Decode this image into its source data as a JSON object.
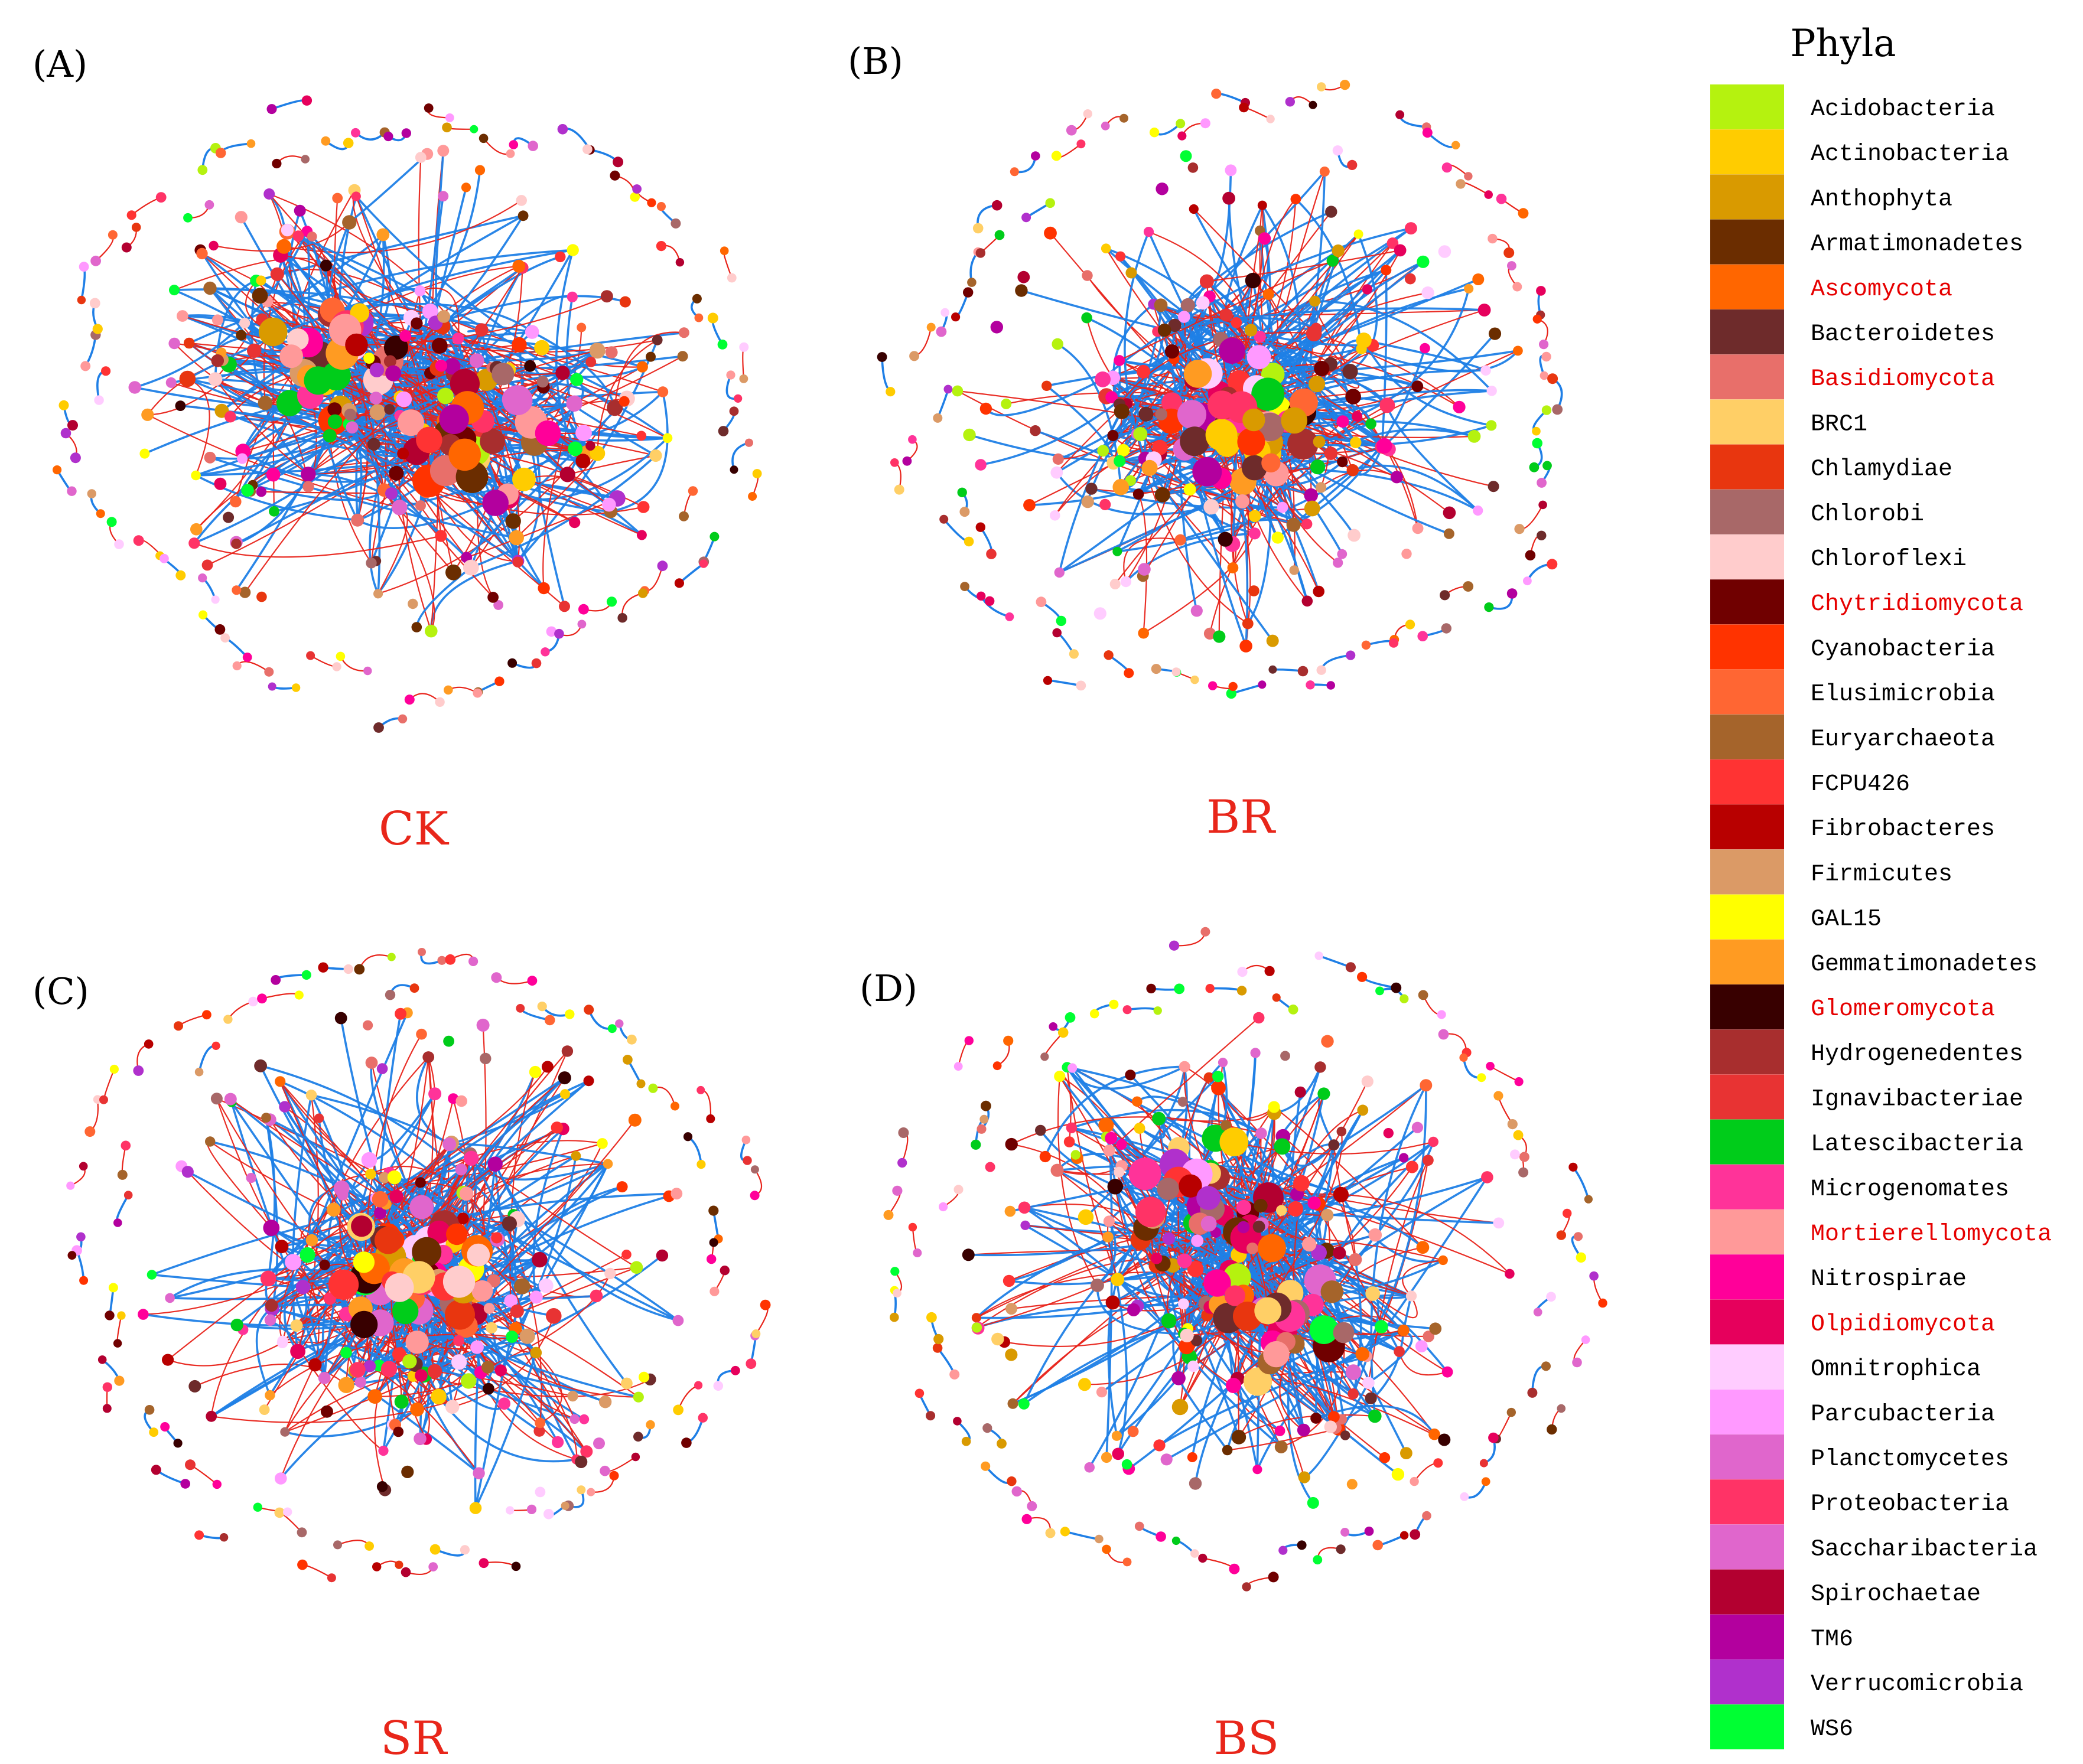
{
  "panels": [
    {
      "letter": "(A)",
      "name": "CK",
      "seed": 11,
      "hubs": [
        {
          "f": 0.25,
          "n": 70
        },
        {
          "f": 0.72,
          "n": 90
        }
      ]
    },
    {
      "letter": "(B)",
      "name": "BR",
      "seed": 23,
      "hubs": [
        {
          "f": 0.5,
          "n": 140
        }
      ]
    },
    {
      "letter": "(C)",
      "name": "SR",
      "seed": 37,
      "hubs": [
        {
          "f": 0.5,
          "n": 150
        }
      ]
    },
    {
      "letter": "(D)",
      "name": "BS",
      "seed": 53,
      "hubs": [
        {
          "f": 0.35,
          "n": 70
        },
        {
          "f": 0.62,
          "n": 80
        }
      ]
    }
  ],
  "edge_colors": {
    "positive": "#1f7fe6",
    "negative": "#e8231a"
  },
  "legend": {
    "title": "Phyla",
    "items": [
      {
        "label": "Acidobacteria",
        "color": "#b5f20f",
        "fungi": false
      },
      {
        "label": "Actinobacteria",
        "color": "#ffcc00",
        "fungi": false
      },
      {
        "label": "Anthophyta",
        "color": "#d99a00",
        "fungi": false
      },
      {
        "label": "Armatimonadetes",
        "color": "#6b2d00",
        "fungi": false
      },
      {
        "label": "Ascomycota",
        "color": "#ff6600",
        "fungi": true
      },
      {
        "label": "Bacteroidetes",
        "color": "#6e2b2b",
        "fungi": false
      },
      {
        "label": "Basidiomycota",
        "color": "#e86f6a",
        "fungi": true
      },
      {
        "label": "BRC1",
        "color": "#ffcf66",
        "fungi": false
      },
      {
        "label": "Chlamydiae",
        "color": "#e8360f",
        "fungi": false
      },
      {
        "label": "Chlorobi",
        "color": "#a86868",
        "fungi": false
      },
      {
        "label": "Chloroflexi",
        "color": "#ffcccc",
        "fungi": false
      },
      {
        "label": "Chytridiomycota",
        "color": "#700000",
        "fungi": true
      },
      {
        "label": "Cyanobacteria",
        "color": "#ff3300",
        "fungi": false
      },
      {
        "label": "Elusimicrobia",
        "color": "#ff6633",
        "fungi": false
      },
      {
        "label": "Euryarchaeota",
        "color": "#a5642b",
        "fungi": false
      },
      {
        "label": "FCPU426",
        "color": "#ff3333",
        "fungi": false
      },
      {
        "label": "Fibrobacteres",
        "color": "#b80000",
        "fungi": false
      },
      {
        "label": "Firmicutes",
        "color": "#db9a66",
        "fungi": false
      },
      {
        "label": "GAL15",
        "color": "#ffff00",
        "fungi": false
      },
      {
        "label": "Gemmatimonadetes",
        "color": "#ff9b22",
        "fungi": false
      },
      {
        "label": "Glomeromycota",
        "color": "#380000",
        "fungi": true
      },
      {
        "label": "Hydrogenedentes",
        "color": "#a82e2e",
        "fungi": false
      },
      {
        "label": "Ignavibacteriae",
        "color": "#e83333",
        "fungi": false
      },
      {
        "label": "Latescibacteria",
        "color": "#00cc1a",
        "fungi": false
      },
      {
        "label": "Microgenomates",
        "color": "#ff3399",
        "fungi": false
      },
      {
        "label": "Mortierellomycota",
        "color": "#ff9999",
        "fungi": true
      },
      {
        "label": "Nitrospirae",
        "color": "#ff0099",
        "fungi": false
      },
      {
        "label": "Olpidiomycota",
        "color": "#e6005c",
        "fungi": true
      },
      {
        "label": "Omnitrophica",
        "color": "#ffccff",
        "fungi": false
      },
      {
        "label": "Parcubacteria",
        "color": "#ff99ff",
        "fungi": false
      },
      {
        "label": "Planctomycetes",
        "color": "#e066cc",
        "fungi": false
      },
      {
        "label": "Proteobacteria",
        "color": "#ff3366",
        "fungi": false
      },
      {
        "label": "Saccharibacteria",
        "color": "#e066cc",
        "fungi": false
      },
      {
        "label": "Spirochaetae",
        "color": "#b30030",
        "fungi": false
      },
      {
        "label": "TM6",
        "color": "#b3009e",
        "fungi": false
      },
      {
        "label": "Verrucomicrobia",
        "color": "#b030cc",
        "fungi": false
      },
      {
        "label": "WS6",
        "color": "#00ff33",
        "fungi": false
      }
    ]
  }
}
